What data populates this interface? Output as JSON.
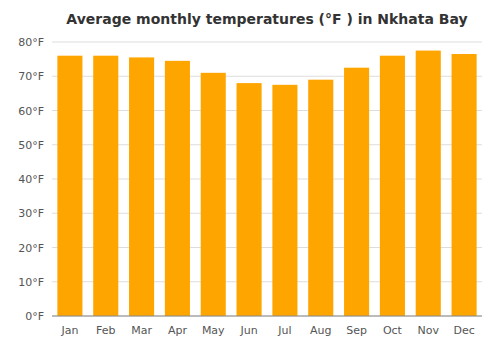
{
  "chart_data": {
    "type": "bar",
    "title": "Average monthly temperatures (°F ) in Nkhata Bay",
    "categories": [
      "Jan",
      "Feb",
      "Mar",
      "Apr",
      "May",
      "Jun",
      "Jul",
      "Aug",
      "Sep",
      "Oct",
      "Nov",
      "Dec"
    ],
    "values": [
      76.0,
      76.0,
      75.5,
      74.5,
      71.0,
      68.0,
      67.5,
      69.0,
      72.5,
      76.0,
      77.5,
      76.5
    ],
    "color": "#FFA500",
    "ylim": [
      0,
      80
    ],
    "yticks": [
      {
        "value": 0,
        "label": "0°F"
      },
      {
        "value": 10,
        "label": "10°F"
      },
      {
        "value": 20,
        "label": "20°F"
      },
      {
        "value": 30,
        "label": "30°F"
      },
      {
        "value": 40,
        "label": "40°F"
      },
      {
        "value": 50,
        "label": "50°F"
      },
      {
        "value": 60,
        "label": "60°F"
      },
      {
        "value": 70,
        "label": "70°F"
      },
      {
        "value": 80,
        "label": "80°F"
      }
    ],
    "grid": true
  }
}
